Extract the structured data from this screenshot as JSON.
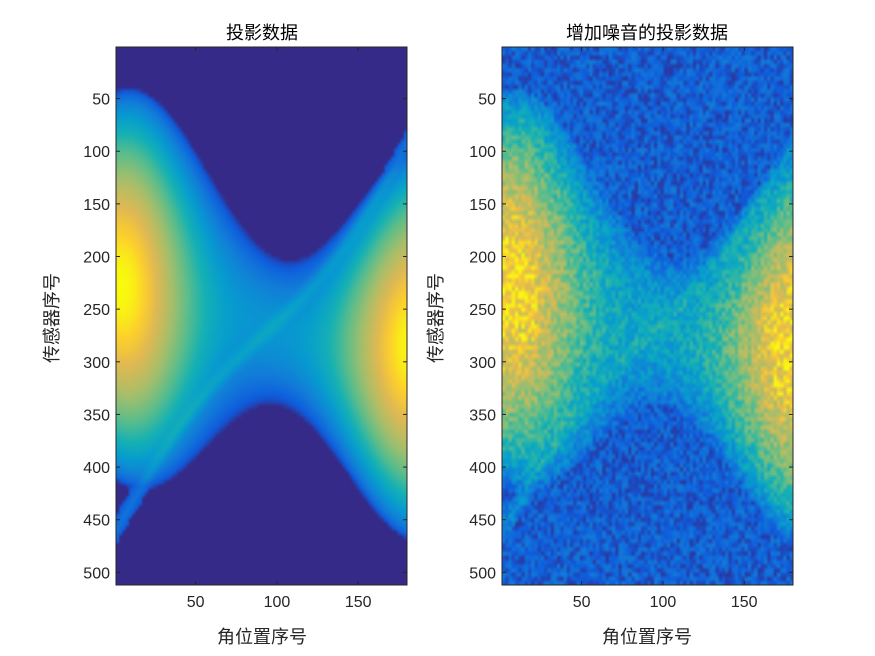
{
  "chart_data": [
    {
      "type": "heatmap",
      "title": "投影数据",
      "xlabel": "角位置序号",
      "ylabel": "传感器序号",
      "xlim": [
        1,
        180
      ],
      "ylim": [
        1,
        512
      ],
      "y_reversed": true,
      "xticks": [
        50,
        100,
        150
      ],
      "yticks": [
        50,
        100,
        150,
        200,
        250,
        300,
        350,
        400,
        450,
        500
      ],
      "colormap": "parula",
      "noise": false,
      "image": "sinogram: bright ellipse band (peaks near angle ~5, sensor ~300 and angle ~175, sensor ~240) with a thin oblique line from sensor ~460 at angle 1 to sensor ~80 at angle 180"
    },
    {
      "type": "heatmap",
      "title": "增加噪音的投影数据",
      "xlabel": "角位置序号",
      "ylabel": "传感器序号",
      "xlim": [
        1,
        180
      ],
      "ylim": [
        1,
        512
      ],
      "y_reversed": true,
      "xticks": [
        50,
        100,
        150
      ],
      "yticks": [
        50,
        100,
        150,
        200,
        250,
        300,
        350,
        400,
        450,
        500
      ],
      "colormap": "parula",
      "noise": true,
      "image": "same sinogram with additive random noise"
    }
  ],
  "colors": {
    "background": "#352a87",
    "low": "#0f5cdd",
    "mid": "#14a5c5",
    "high": "#f9fb0e"
  }
}
